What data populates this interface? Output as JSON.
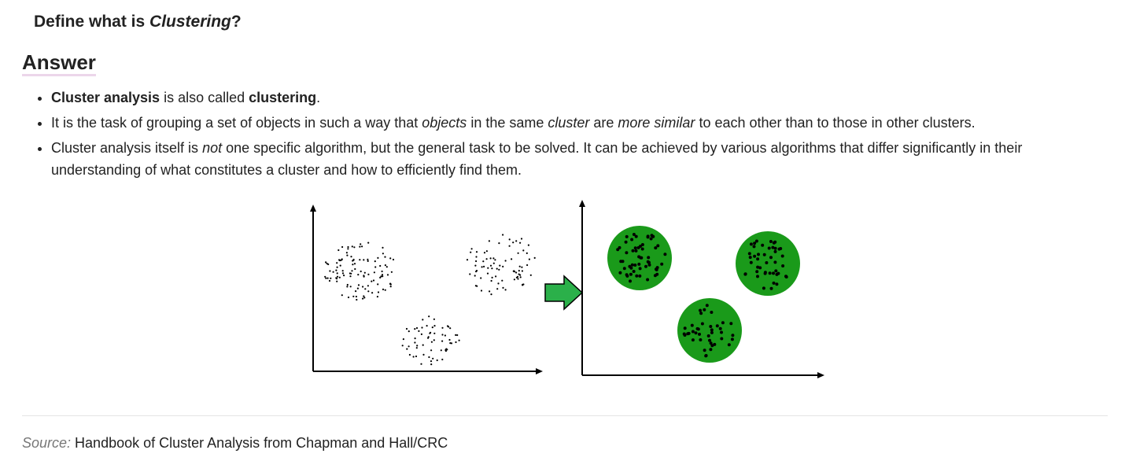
{
  "question": {
    "prefix": "Define what is ",
    "term": "Clustering",
    "suffix": "?"
  },
  "answer_heading": "Answer",
  "points": [
    {
      "b1": "Cluster analysis",
      "t1": " is also called ",
      "b2": "clustering",
      "t2": "."
    },
    {
      "t1": "It is the task of grouping a set of objects in such a way that ",
      "i1": "objects",
      "t2": " in the same ",
      "i2": "cluster",
      "t3": " are ",
      "i3": "more similar",
      "t4": " to each other than to those in other clusters."
    },
    {
      "t1": "Cluster analysis itself is ",
      "i1": "not",
      "t2": " one specific algorithm, but the general task to be solved. It can be achieved by various algorithms that differ significantly in their understanding of what constitutes a cluster and how to efficiently find them."
    }
  ],
  "figure": {
    "arrow_color": "#2bb04a",
    "cluster_color": "#1a9a1a",
    "point_color": "#000000"
  },
  "source": {
    "label": "Source:",
    "text": " Handbook of Cluster Analysis from Chapman and Hall/CRC"
  }
}
